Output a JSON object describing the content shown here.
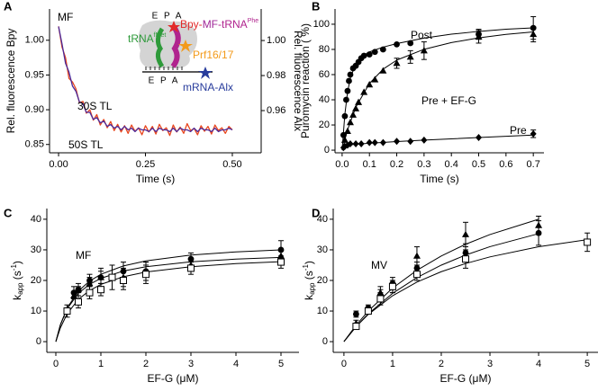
{
  "chart_data": [
    {
      "type": "line",
      "label": "A",
      "annotation": "MF",
      "xlabel": "Time (s)",
      "ylabel": "Rel. fluorescence Bpy",
      "y2label": "Rel. fluorescence Alx",
      "xlim": [
        -0.026,
        0.583
      ],
      "ylim": [
        0.838,
        1.045
      ],
      "y2lim": [
        0.9359,
        1.018
      ],
      "xticks": [
        {
          "value": 0,
          "label": "0.00"
        },
        0.25,
        {
          "value": 0.5,
          "label": "0.50"
        }
      ],
      "yticks": [
        0.85,
        {
          "value": 0.9,
          "label": "0.90"
        },
        0.95,
        {
          "value": 1,
          "label": "1.00"
        }
      ],
      "y2ticks": [
        0.96,
        0.98,
        {
          "value": 1,
          "label": "1.00"
        }
      ],
      "x": [
        0,
        0.01,
        0.02,
        0.03,
        0.04,
        0.05,
        0.06,
        0.07,
        0.08,
        0.09,
        0.1,
        0.11,
        0.12,
        0.13,
        0.14,
        0.15,
        0.16,
        0.17,
        0.18,
        0.19,
        0.2,
        0.21,
        0.22,
        0.23,
        0.24,
        0.25,
        0.26,
        0.27,
        0.28,
        0.29,
        0.3,
        0.31,
        0.32,
        0.33,
        0.34,
        0.35,
        0.36,
        0.37,
        0.38,
        0.39,
        0.4,
        0.41,
        0.42,
        0.43,
        0.44,
        0.45,
        0.46,
        0.47,
        0.48,
        0.49,
        0.5
      ],
      "series": [
        {
          "name": "30S TL",
          "color": "#e8461e",
          "kind": "line",
          "values": [
            1.02,
            0.99,
            0.975,
            0.945,
            0.94,
            0.93,
            0.91,
            0.912,
            0.895,
            0.9,
            0.885,
            0.893,
            0.878,
            0.886,
            0.874,
            0.883,
            0.87,
            0.879,
            0.868,
            0.877,
            0.866,
            0.878,
            0.869,
            0.874,
            0.864,
            0.877,
            0.868,
            0.876,
            0.865,
            0.879,
            0.87,
            0.874,
            0.863,
            0.878,
            0.868,
            0.875,
            0.866,
            0.88,
            0.87,
            0.873,
            0.864,
            0.877,
            0.869,
            0.876,
            0.865,
            0.878,
            0.87,
            0.874,
            0.866,
            0.876,
            0.871
          ]
        },
        {
          "name": "50S TL",
          "color": "#4b2a9a",
          "kind": "line",
          "axis": "y2",
          "values": [
            1.008,
            0.998,
            0.987,
            0.982,
            0.974,
            0.971,
            0.965,
            0.964,
            0.959,
            0.959,
            0.955,
            0.956,
            0.953,
            0.954,
            0.951,
            0.952,
            0.95,
            0.951,
            0.949,
            0.951,
            0.949,
            0.95,
            0.948,
            0.95,
            0.949,
            0.949,
            0.948,
            0.95,
            0.948,
            0.95,
            0.949,
            0.949,
            0.948,
            0.95,
            0.948,
            0.95,
            0.949,
            0.949,
            0.948,
            0.95,
            0.948,
            0.95,
            0.949,
            0.949,
            0.948,
            0.95,
            0.948,
            0.949,
            0.949,
            0.95,
            0.949
          ]
        }
      ],
      "inset": {
        "sites_top": "E P A",
        "trna": "tRNA",
        "fmet": "fMet",
        "bpy": "Bpy-",
        "mf": "MF",
        "trna_phe": "-tRNA",
        "phe": "Phe",
        "prf": "Prf16/17",
        "sites_bottom": "E P A",
        "mrna": "mRNA-Alx"
      }
    },
    {
      "type": "scatter",
      "label": "B",
      "xlabel": "Time (s)",
      "ylabel": "Puromycin reaction ( %)",
      "xlim": [
        -0.026,
        0.739
      ],
      "ylim": [
        -2.1,
        112.1
      ],
      "xticks": [
        {
          "value": 0,
          "label": "0.0"
        },
        0.1,
        0.2,
        0.3,
        0.4,
        0.5,
        0.6,
        0.7
      ],
      "yticks": [
        0,
        20,
        40,
        60,
        80,
        100
      ],
      "series": [
        {
          "name": "Post",
          "color": "#000000",
          "kind": "points",
          "marker": "circle",
          "x": [
            0.005,
            0.01,
            0.015,
            0.02,
            0.025,
            0.03,
            0.04,
            0.05,
            0.06,
            0.07,
            0.08,
            0.1,
            0.12,
            0.15,
            0.2,
            0.25,
            0.5,
            0.7
          ],
          "values": [
            12,
            27,
            40,
            47,
            55,
            60,
            65,
            67,
            70,
            73,
            75,
            76,
            78,
            80,
            84,
            85,
            92,
            97
          ],
          "errors": [
            null,
            null,
            null,
            null,
            null,
            null,
            null,
            null,
            null,
            null,
            null,
            null,
            null,
            null,
            null,
            null,
            4,
            9
          ]
        },
        {
          "name": "Pre + EF-G",
          "color": "#000000",
          "kind": "points",
          "marker": "triangle",
          "x": [
            0.01,
            0.02,
            0.03,
            0.04,
            0.05,
            0.06,
            0.08,
            0.1,
            0.12,
            0.15,
            0.2,
            0.25,
            0.3,
            0.5,
            0.7
          ],
          "values": [
            8,
            15,
            22,
            28,
            33,
            38,
            46,
            52,
            56,
            63,
            69,
            74,
            79,
            90,
            92
          ],
          "errors": [
            null,
            null,
            null,
            null,
            null,
            null,
            null,
            null,
            null,
            null,
            4,
            5,
            7,
            5,
            6
          ]
        },
        {
          "name": "Pre",
          "color": "#000000",
          "kind": "points",
          "marker": "diamond",
          "x": [
            0.005,
            0.01,
            0.02,
            0.03,
            0.05,
            0.07,
            0.1,
            0.12,
            0.15,
            0.2,
            0.25,
            0.3,
            0.5,
            0.7
          ],
          "values": [
            2,
            3,
            4,
            5,
            5,
            5,
            6,
            6,
            6,
            7,
            7,
            8,
            10,
            13
          ],
          "errors": [
            null,
            null,
            null,
            null,
            null,
            null,
            null,
            null,
            null,
            null,
            null,
            null,
            null,
            3
          ]
        },
        {
          "color": "#000000",
          "kind": "line",
          "x": [
            0,
            0.01,
            0.02,
            0.03,
            0.05,
            0.075,
            0.1,
            0.15,
            0.2,
            0.3,
            0.4,
            0.5,
            0.6,
            0.7
          ],
          "values": [
            0,
            28.5,
            46.1,
            57.2,
            68.9,
            75,
            78,
            81.8,
            84.6,
            89,
            92.1,
            94.3,
            96,
            97.1
          ]
        },
        {
          "color": "#000000",
          "kind": "line",
          "x": [
            0,
            0.02,
            0.05,
            0.1,
            0.15,
            0.2,
            0.3,
            0.4,
            0.5,
            0.6,
            0.7
          ],
          "values": [
            0,
            16.2,
            34,
            53,
            64.3,
            71.5,
            80.1,
            85.4,
            89.2,
            91.9,
            93.9
          ]
        },
        {
          "color": "#000000",
          "kind": "line",
          "x": [
            0,
            0.01,
            0.02,
            0.05,
            0.1,
            0.2,
            0.3,
            0.5,
            0.7
          ],
          "values": [
            0,
            3,
            4,
            4.8,
            5.5,
            6.8,
            8,
            10,
            12
          ]
        }
      ]
    },
    {
      "type": "scatter",
      "label": "C",
      "annotation": "MF",
      "xlabel": "EF-G (μM)",
      "ylabel_parts": [
        "k",
        "app",
        " (s",
        "-1",
        ")"
      ],
      "xlim": [
        -0.2,
        5.4
      ],
      "ylim": [
        -3.5,
        43.5
      ],
      "xticks": [
        0,
        1,
        2,
        3,
        4,
        5
      ],
      "yticks": [
        0,
        10,
        20,
        30,
        40
      ],
      "series": [
        {
          "color": "#000000",
          "kind": "line",
          "x": [
            0,
            0.1,
            0.25,
            0.5,
            0.75,
            1,
            1.5,
            2,
            3,
            4,
            5
          ],
          "values": [
            0,
            5.5,
            11,
            16.5,
            19.8,
            22,
            24.75,
            26.4,
            28.29,
            29.33,
            30
          ]
        },
        {
          "color": "#000000",
          "kind": "line",
          "x": [
            0,
            0.1,
            0.25,
            0.5,
            0.75,
            1,
            1.5,
            2,
            3,
            4,
            5
          ],
          "values": [
            0,
            5.45,
            10.71,
            15.79,
            18.75,
            20.69,
            23.08,
            24.49,
            26.09,
            26.97,
            27.52
          ]
        },
        {
          "color": "#000000",
          "kind": "line",
          "x": [
            0,
            0.1,
            0.25,
            0.5,
            0.75,
            1,
            1.5,
            2,
            3,
            4,
            5
          ],
          "values": [
            0,
            4.46,
            9.06,
            13.81,
            16.73,
            18.71,
            21.22,
            22.75,
            24.49,
            25.49,
            26.13
          ]
        },
        {
          "color": "#000000",
          "kind": "points",
          "marker": "circle",
          "x": [
            0.25,
            0.4,
            0.5,
            0.75,
            1,
            1.5,
            2,
            3,
            5
          ],
          "values": [
            10,
            16,
            17,
            20,
            21,
            23,
            23,
            27,
            30
          ],
          "errors": [
            2,
            2,
            2,
            2,
            3,
            3,
            3,
            2,
            3
          ]
        },
        {
          "color": "#000000",
          "kind": "points",
          "marker": "triangle",
          "x": [
            0.4,
            0.5,
            0.75,
            1,
            1.5,
            2,
            3,
            5
          ],
          "values": [
            15,
            17,
            19,
            21,
            21,
            23,
            25,
            28
          ],
          "errors": [
            1,
            1,
            2,
            2,
            3,
            3,
            2,
            2
          ]
        },
        {
          "color": "#000000",
          "kind": "points",
          "marker": "square-open",
          "x": [
            0.25,
            0.5,
            0.75,
            1,
            1.25,
            1.5,
            2,
            3,
            5
          ],
          "values": [
            10,
            13,
            16,
            17,
            21,
            20,
            22,
            24,
            26
          ],
          "errors": [
            1,
            2,
            2,
            2,
            4,
            3,
            3,
            2,
            2
          ]
        }
      ]
    },
    {
      "type": "scatter",
      "label": "D",
      "annotation": "MV",
      "xlabel": "EF-G (μM)",
      "ylabel_parts": [
        "k",
        "app",
        " (s",
        "-1",
        ")"
      ],
      "xlim": [
        -0.22,
        5.22
      ],
      "ylim": [
        -3.5,
        43.5
      ],
      "xticks": [
        0,
        1,
        2,
        3,
        4,
        5
      ],
      "yticks": [
        0,
        10,
        20,
        30,
        40
      ],
      "series": [
        {
          "color": "#000000",
          "kind": "line",
          "x": [
            0,
            0.25,
            0.5,
            1,
            1.5,
            2,
            2.5,
            3,
            4
          ],
          "values": [
            0,
            5.38,
            10,
            17.5,
            23.33,
            28,
            31.82,
            35,
            40
          ]
        },
        {
          "color": "#000000",
          "kind": "line",
          "x": [
            0,
            0.25,
            0.5,
            1,
            1.5,
            2,
            2.5,
            3,
            4
          ],
          "values": [
            0,
            4.92,
            9.09,
            15.79,
            20.93,
            25,
            28.3,
            31.03,
            35.29
          ]
        },
        {
          "color": "#000000",
          "kind": "line",
          "x": [
            0,
            0.25,
            0.5,
            1,
            1.5,
            2,
            2.5,
            3,
            4,
            5
          ],
          "values": [
            0,
            4.9,
            8.89,
            15,
            19.46,
            22.86,
            25.53,
            27.69,
            31.02,
            33.33
          ]
        },
        {
          "color": "#000000",
          "kind": "points",
          "marker": "circle",
          "x": [
            0.25,
            0.5,
            0.75,
            1,
            1.5,
            2.5,
            4
          ],
          "values": [
            9,
            11,
            15,
            19,
            24,
            29,
            35.5
          ],
          "errors": [
            1,
            1,
            2,
            2,
            2,
            3,
            4
          ]
        },
        {
          "color": "#000000",
          "kind": "points",
          "marker": "triangle",
          "x": [
            0.25,
            0.5,
            0.75,
            1,
            1.5,
            2.5,
            4
          ],
          "values": [
            6,
            10,
            16,
            18,
            28,
            35,
            38
          ],
          "errors": [
            1,
            1,
            2,
            2,
            3,
            4,
            3
          ]
        },
        {
          "color": "#000000",
          "kind": "points",
          "marker": "square-open",
          "x": [
            0.25,
            0.5,
            0.75,
            1,
            1.5,
            2.5,
            5
          ],
          "values": [
            5,
            10,
            14,
            18,
            22,
            27,
            32.5
          ],
          "errors": [
            1,
            1,
            2,
            2,
            2,
            3,
            3
          ]
        }
      ]
    }
  ]
}
